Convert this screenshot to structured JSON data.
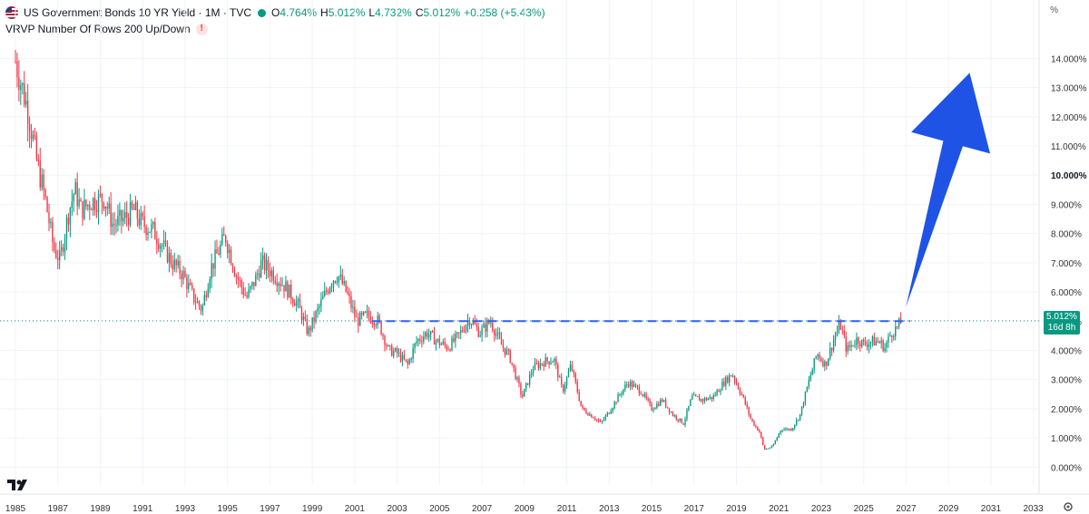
{
  "legend": {
    "symbol_title": "US Government Bonds 10 YR Yield · 1M · TVC",
    "open_label": "O",
    "open": "4.764%",
    "high_label": "H",
    "high": "5.012%",
    "low_label": "L",
    "low": "4.732%",
    "close_label": "C",
    "close": "5.012%",
    "change": "+0.258 (+5.43%)",
    "indicator": "VRVP Number Of Rows 200 Up/Down",
    "warning_glyph": "!"
  },
  "axis": {
    "unit": "%",
    "price_tag_value": "5.012%",
    "price_tag_countdown": "16d 8h"
  },
  "colors": {
    "up": "#089981",
    "down": "#f23645",
    "arrow": "#1e53e5",
    "dashed_line": "#2962ff",
    "grid": "#f0f3fa"
  },
  "chart_data": {
    "type": "candlestick",
    "title": "US Government Bonds 10 YR Yield · 1M · TVC",
    "xlim": [
      1985.0,
      2034.0
    ],
    "ylim": [
      -0.3,
      14.6
    ],
    "y_ticks": [
      "14.000%",
      "13.000%",
      "12.000%",
      "11.000%",
      "10.000%",
      "9.000%",
      "8.000%",
      "7.000%",
      "6.000%",
      "5.000%",
      "4.000%",
      "3.000%",
      "2.000%",
      "1.000%",
      "0.000%"
    ],
    "x_ticks": [
      "1985",
      "1987",
      "1989",
      "1991",
      "1993",
      "1995",
      "1997",
      "1999",
      "2001",
      "2003",
      "2005",
      "2007",
      "2009",
      "2011",
      "2013",
      "2015",
      "2017",
      "2019",
      "2021",
      "2023",
      "2025",
      "2027",
      "2029",
      "2031",
      "2033"
    ],
    "series": [
      {
        "keypoints": [
          [
            1985.0,
            13.9
          ],
          [
            1985.6,
            12.2
          ],
          [
            1986.0,
            10.5
          ],
          [
            1986.4,
            9.2
          ],
          [
            1986.8,
            7.5
          ],
          [
            1987.1,
            7.1
          ],
          [
            1987.5,
            8.7
          ],
          [
            1987.8,
            9.5
          ],
          [
            1988.1,
            8.8
          ],
          [
            1988.6,
            9.1
          ],
          [
            1989.2,
            9.2
          ],
          [
            1989.6,
            8.3
          ],
          [
            1990.1,
            8.5
          ],
          [
            1990.6,
            8.8
          ],
          [
            1990.9,
            8.4
          ],
          [
            1991.5,
            8.1
          ],
          [
            1992.0,
            7.5
          ],
          [
            1992.4,
            7.0
          ],
          [
            1992.9,
            6.6
          ],
          [
            1993.4,
            5.8
          ],
          [
            1993.8,
            5.4
          ],
          [
            1994.2,
            6.8
          ],
          [
            1994.9,
            7.9
          ],
          [
            1995.4,
            6.6
          ],
          [
            1995.9,
            5.8
          ],
          [
            1996.3,
            6.4
          ],
          [
            1996.6,
            7.0
          ],
          [
            1997.2,
            6.6
          ],
          [
            1997.7,
            6.2
          ],
          [
            1998.3,
            5.6
          ],
          [
            1998.8,
            4.6
          ],
          [
            1999.4,
            5.6
          ],
          [
            1999.9,
            6.4
          ],
          [
            2000.2,
            6.6
          ],
          [
            2000.6,
            6.0
          ],
          [
            2001.1,
            5.0
          ],
          [
            2001.6,
            5.2
          ],
          [
            2002.1,
            5.0
          ],
          [
            2002.6,
            4.0
          ],
          [
            2003.0,
            3.9
          ],
          [
            2003.5,
            3.5
          ],
          [
            2003.9,
            4.3
          ],
          [
            2004.4,
            4.6
          ],
          [
            2004.9,
            4.3
          ],
          [
            2005.4,
            4.1
          ],
          [
            2005.9,
            4.5
          ],
          [
            2006.4,
            5.1
          ],
          [
            2006.9,
            4.6
          ],
          [
            2007.4,
            5.0
          ],
          [
            2007.9,
            4.2
          ],
          [
            2008.3,
            3.8
          ],
          [
            2008.9,
            2.4
          ],
          [
            2009.4,
            3.4
          ],
          [
            2009.9,
            3.6
          ],
          [
            2010.4,
            3.7
          ],
          [
            2010.8,
            2.6
          ],
          [
            2011.2,
            3.5
          ],
          [
            2011.7,
            2.0
          ],
          [
            2012.3,
            1.7
          ],
          [
            2012.6,
            1.5
          ],
          [
            2013.0,
            1.9
          ],
          [
            2013.5,
            2.5
          ],
          [
            2013.9,
            2.9
          ],
          [
            2014.5,
            2.6
          ],
          [
            2015.0,
            2.0
          ],
          [
            2015.5,
            2.3
          ],
          [
            2016.0,
            1.8
          ],
          [
            2016.5,
            1.5
          ],
          [
            2016.9,
            2.4
          ],
          [
            2017.4,
            2.3
          ],
          [
            2017.9,
            2.4
          ],
          [
            2018.4,
            2.9
          ],
          [
            2018.8,
            3.2
          ],
          [
            2019.3,
            2.4
          ],
          [
            2019.7,
            1.6
          ],
          [
            2020.1,
            1.2
          ],
          [
            2020.3,
            0.6
          ],
          [
            2020.7,
            0.7
          ],
          [
            2021.1,
            1.3
          ],
          [
            2021.6,
            1.3
          ],
          [
            2022.0,
            1.8
          ],
          [
            2022.4,
            2.9
          ],
          [
            2022.8,
            3.9
          ],
          [
            2023.2,
            3.5
          ],
          [
            2023.6,
            4.4
          ],
          [
            2023.9,
            4.9
          ],
          [
            2024.2,
            4.0
          ],
          [
            2024.7,
            4.4
          ],
          [
            2025.0,
            4.2
          ],
          [
            2025.3,
            4.3
          ],
          [
            2025.7,
            4.3
          ],
          [
            2026.0,
            4.1
          ],
          [
            2026.3,
            4.6
          ],
          [
            2026.6,
            4.8
          ],
          [
            2026.8,
            5.0
          ]
        ]
      }
    ],
    "last_value": 5.012,
    "annotations": [
      {
        "type": "dashed-horizontal",
        "y": 5.0,
        "x_start": 2001.8,
        "x_end": 2027.2
      },
      {
        "type": "arrow",
        "from": [
          2027.0,
          5.5
        ],
        "to": [
          2030.0,
          13.5
        ]
      }
    ]
  }
}
